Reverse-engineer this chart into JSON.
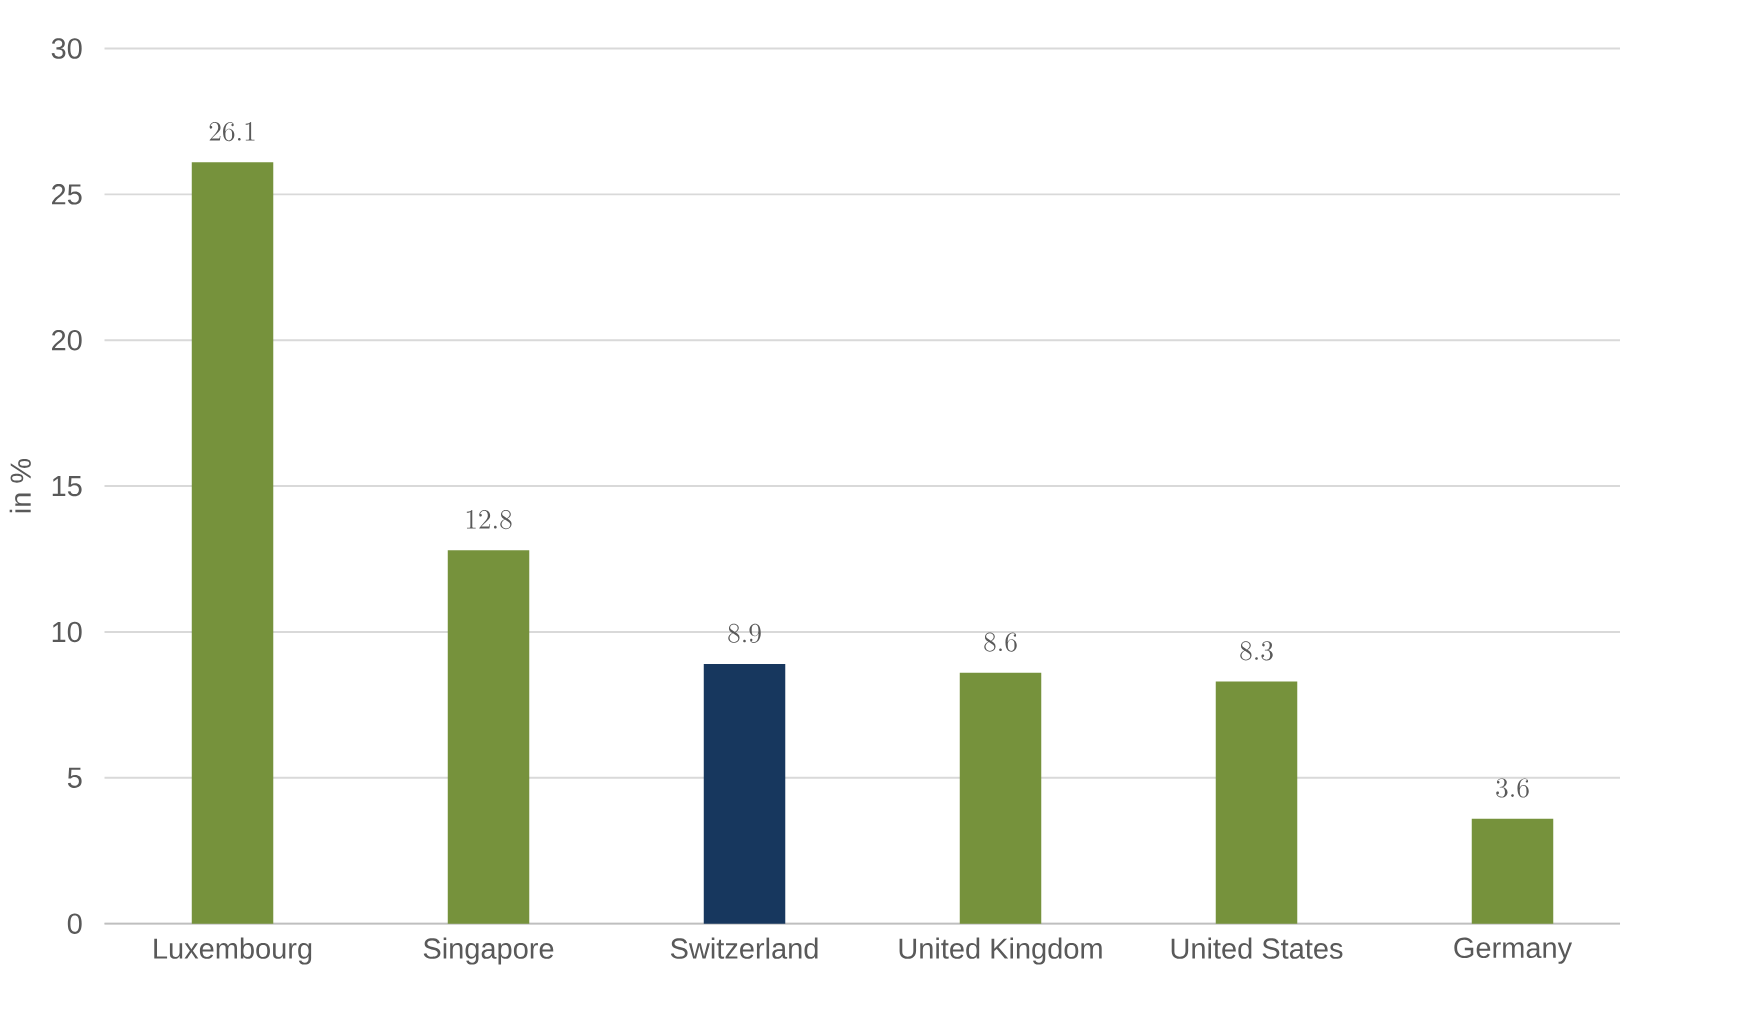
{
  "chart_data": {
    "type": "bar",
    "ylabel": "in %",
    "categories": [
      "Luxembourg",
      "Singapore",
      "Switzerland",
      "United Kingdom",
      "United States",
      "Germany"
    ],
    "values": [
      26.1,
      12.8,
      8.9,
      8.6,
      8.3,
      3.6
    ],
    "colors": [
      "#76923c",
      "#76923c",
      "#17375e",
      "#76923c",
      "#76923c",
      "#76923c"
    ],
    "ylim": [
      0,
      30
    ],
    "yticks": [
      0,
      5,
      10,
      15,
      20,
      25,
      30
    ],
    "grid": "y",
    "data_labels": true
  }
}
